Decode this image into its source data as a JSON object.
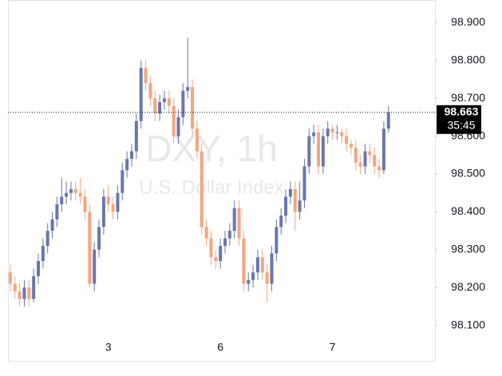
{
  "chart_data": {
    "type": "candlestick",
    "watermark_title": "DXY, 1h",
    "watermark_subtitle": "U.S. Dollar Index",
    "countdown": "35:45",
    "up_color": "#6a76ad",
    "down_color": "#f4a57f",
    "ylim": [
      98.04,
      98.96
    ],
    "yticks": [
      {
        "value": 98.1,
        "label": "98.100"
      },
      {
        "value": 98.2,
        "label": "98.200"
      },
      {
        "value": 98.3,
        "label": "98.300"
      },
      {
        "value": 98.4,
        "label": "98.400"
      },
      {
        "value": 98.5,
        "label": "98.500"
      },
      {
        "value": 98.6,
        "label": "98.600"
      },
      {
        "value": 98.7,
        "label": "98.700"
      },
      {
        "value": 98.8,
        "label": "98.800"
      },
      {
        "value": 98.9,
        "label": "98.900"
      }
    ],
    "categories": [
      null,
      null,
      null,
      null,
      null,
      null,
      null,
      null,
      null,
      null,
      null,
      null,
      null,
      null,
      null,
      null,
      null,
      null,
      null,
      null,
      null,
      "3",
      null,
      null,
      null,
      null,
      null,
      null,
      null,
      null,
      null,
      null,
      null,
      null,
      null,
      null,
      null,
      null,
      null,
      null,
      null,
      null,
      null,
      null,
      null,
      "6",
      null,
      null,
      null,
      null,
      null,
      null,
      null,
      null,
      null,
      null,
      null,
      null,
      null,
      null,
      null,
      null,
      null,
      null,
      null,
      null,
      null,
      null,
      null,
      "7",
      null,
      null,
      null,
      null,
      null,
      null,
      null,
      null,
      null,
      null,
      null,
      null
    ],
    "open": [
      98.24,
      98.21,
      98.19,
      98.17,
      98.2,
      98.17,
      98.23,
      98.27,
      98.31,
      98.35,
      98.38,
      98.42,
      98.44,
      98.45,
      98.46,
      98.45,
      98.44,
      98.4,
      98.21,
      98.3,
      98.36,
      98.44,
      98.42,
      98.4,
      98.45,
      98.51,
      98.54,
      98.56,
      98.64,
      98.78,
      98.74,
      98.7,
      98.66,
      98.69,
      98.7,
      98.68,
      98.6,
      98.65,
      98.72,
      98.73,
      98.62,
      98.56,
      98.36,
      98.33,
      98.28,
      98.27,
      98.31,
      98.33,
      98.35,
      98.41,
      98.33,
      98.21,
      98.22,
      98.24,
      98.28,
      98.24,
      98.21,
      98.29,
      98.36,
      98.39,
      98.44,
      98.46,
      98.4,
      98.43,
      98.52,
      98.6,
      98.61,
      98.52,
      98.6,
      98.62,
      98.61,
      98.61,
      98.6,
      98.58,
      98.57,
      98.53,
      98.52,
      98.56,
      98.55,
      98.52,
      98.51,
      98.62
    ],
    "high": [
      98.26,
      98.23,
      98.21,
      98.22,
      98.22,
      98.25,
      98.29,
      98.33,
      98.37,
      98.4,
      98.44,
      98.49,
      98.48,
      98.48,
      98.48,
      98.49,
      98.46,
      98.42,
      98.32,
      98.38,
      98.46,
      98.47,
      98.44,
      98.47,
      98.53,
      98.56,
      98.58,
      98.66,
      98.8,
      98.8,
      98.76,
      98.72,
      98.71,
      98.72,
      98.72,
      98.7,
      98.67,
      98.74,
      98.86,
      98.75,
      98.64,
      98.58,
      98.38,
      98.35,
      98.3,
      98.33,
      98.35,
      98.37,
      98.43,
      98.43,
      98.35,
      98.24,
      98.26,
      98.3,
      98.3,
      98.26,
      98.31,
      98.38,
      98.41,
      98.46,
      98.48,
      98.48,
      98.48,
      98.54,
      98.62,
      98.63,
      98.63,
      98.62,
      98.64,
      98.63,
      98.63,
      98.62,
      98.62,
      98.59,
      98.59,
      98.55,
      98.58,
      98.58,
      98.57,
      98.54,
      98.64,
      98.68
    ],
    "low": [
      98.19,
      98.17,
      98.15,
      98.15,
      98.15,
      98.16,
      98.21,
      98.25,
      98.29,
      98.33,
      98.36,
      98.4,
      98.42,
      98.43,
      98.43,
      98.42,
      98.38,
      98.2,
      98.19,
      98.28,
      98.34,
      98.4,
      98.38,
      98.38,
      98.43,
      98.49,
      98.52,
      98.54,
      98.62,
      98.72,
      98.68,
      98.64,
      98.64,
      98.67,
      98.66,
      98.58,
      98.58,
      98.63,
      98.7,
      98.6,
      98.54,
      98.34,
      98.31,
      98.26,
      98.25,
      98.25,
      98.29,
      98.31,
      98.33,
      98.31,
      98.19,
      98.19,
      98.2,
      98.22,
      98.22,
      98.16,
      98.19,
      98.27,
      98.34,
      98.37,
      98.42,
      98.35,
      98.38,
      98.41,
      98.5,
      98.58,
      98.5,
      98.5,
      98.58,
      98.59,
      98.59,
      98.58,
      98.56,
      98.55,
      98.51,
      98.5,
      98.5,
      98.53,
      98.5,
      98.49,
      98.5,
      98.61
    ],
    "close": [
      98.21,
      98.19,
      98.17,
      98.2,
      98.17,
      98.23,
      98.27,
      98.31,
      98.35,
      98.38,
      98.42,
      98.44,
      98.45,
      98.46,
      98.45,
      98.44,
      98.4,
      98.21,
      98.3,
      98.36,
      98.44,
      98.42,
      98.4,
      98.45,
      98.51,
      98.54,
      98.56,
      98.64,
      98.78,
      98.74,
      98.7,
      98.66,
      98.69,
      98.7,
      98.68,
      98.6,
      98.65,
      98.72,
      98.73,
      98.62,
      98.56,
      98.36,
      98.33,
      98.28,
      98.27,
      98.31,
      98.33,
      98.35,
      98.41,
      98.33,
      98.21,
      98.22,
      98.24,
      98.28,
      98.24,
      98.21,
      98.29,
      98.36,
      98.39,
      98.44,
      98.46,
      98.4,
      98.43,
      98.52,
      98.6,
      98.61,
      98.52,
      98.6,
      98.62,
      98.61,
      98.61,
      98.6,
      98.58,
      98.57,
      98.53,
      98.52,
      98.56,
      98.55,
      98.52,
      98.51,
      98.62,
      98.663
    ]
  }
}
